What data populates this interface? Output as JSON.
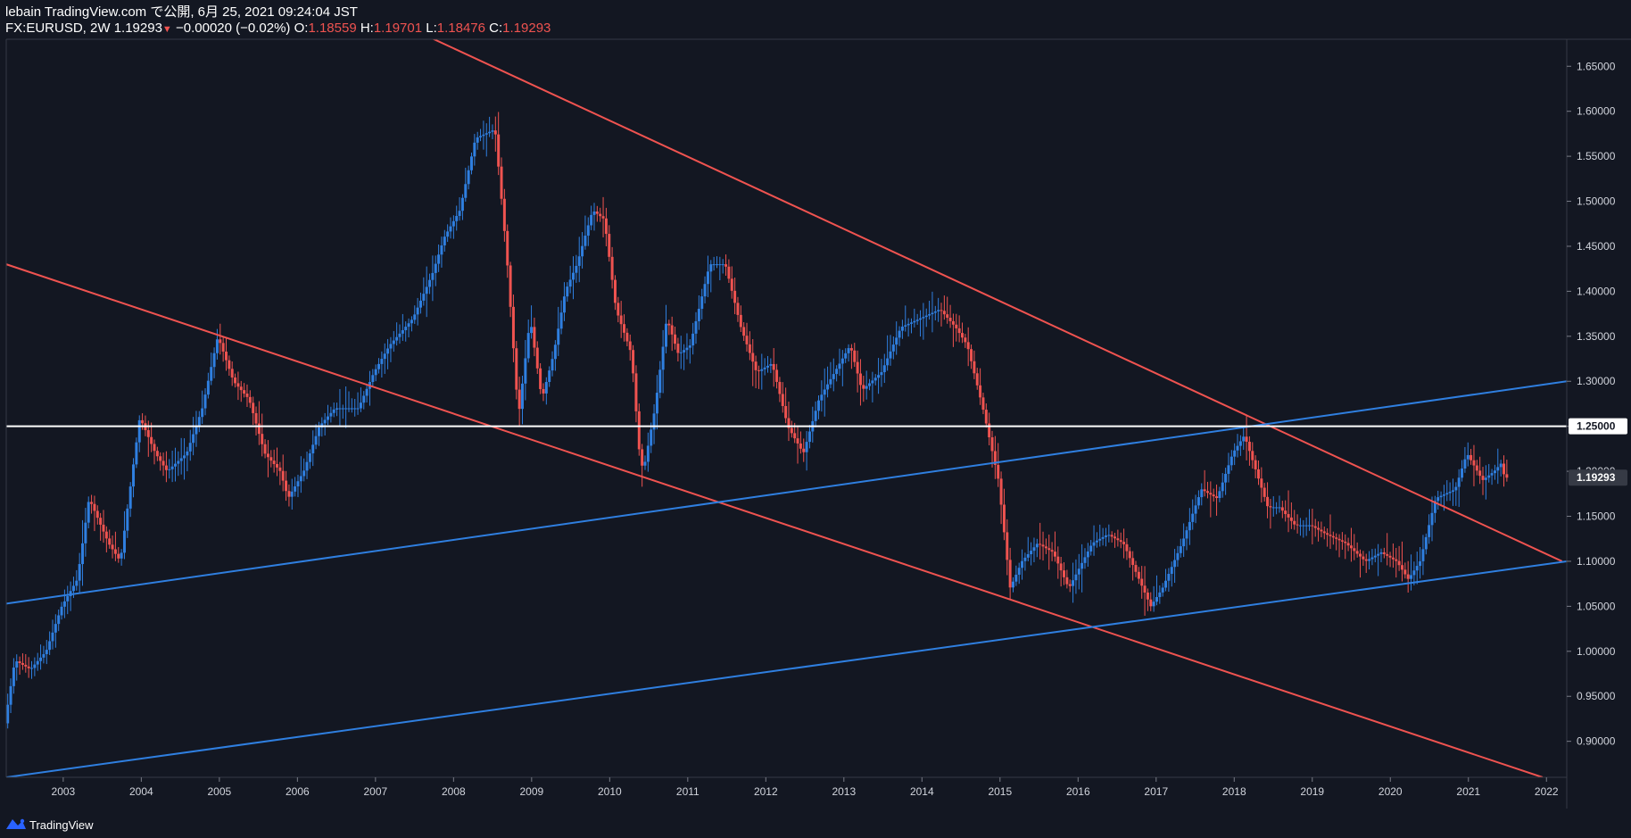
{
  "header": {
    "title_line": "lebain TradingView.com で公開, 6月 25, 2021 09:24:04 JST",
    "symbol": "FX:EURUSD, 2W",
    "last": "1.19293",
    "change": "−0.00020 (−0.02%)",
    "o_label": "O:",
    "o_value": "1.18559",
    "h_label": "H:",
    "h_value": "1.19701",
    "l_label": "L:",
    "l_value": "1.18476",
    "c_label": "C:",
    "c_value": "1.19293"
  },
  "footer": {
    "brand": "TradingView"
  },
  "colors": {
    "background": "#131722",
    "up": "#2f7fe0",
    "down": "#ef5350",
    "channel_red": "#ef5350",
    "channel_blue": "#2f7fe0",
    "horizontal_level": "#ffffff"
  },
  "chart_data": {
    "type": "candlestick",
    "instrument": "FX:EURUSD",
    "interval": "2W",
    "x_axis": {
      "range": [
        2002.27,
        2022.26
      ],
      "ticks": [
        "2003",
        "2004",
        "2005",
        "2006",
        "2007",
        "2008",
        "2009",
        "2010",
        "2011",
        "2012",
        "2013",
        "2014",
        "2015",
        "2016",
        "2017",
        "2018",
        "2019",
        "2020",
        "2021",
        "2022"
      ]
    },
    "y_axis": {
      "range": [
        0.86,
        1.68
      ],
      "position": "right",
      "ticks": [
        "0.90000",
        "0.95000",
        "1.00000",
        "1.05000",
        "1.10000",
        "1.15000",
        "1.20000",
        "1.25000",
        "1.30000",
        "1.35000",
        "1.40000",
        "1.45000",
        "1.50000",
        "1.55000",
        "1.60000",
        "1.65000"
      ]
    },
    "price_path": [
      [
        2002.27,
        0.92
      ],
      [
        2002.4,
        0.99
      ],
      [
        2002.6,
        0.98
      ],
      [
        2002.8,
        1.0
      ],
      [
        2003.0,
        1.05
      ],
      [
        2003.2,
        1.08
      ],
      [
        2003.35,
        1.17
      ],
      [
        2003.6,
        1.12
      ],
      [
        2003.75,
        1.1
      ],
      [
        2004.0,
        1.26
      ],
      [
        2004.2,
        1.22
      ],
      [
        2004.35,
        1.2
      ],
      [
        2004.6,
        1.22
      ],
      [
        2004.8,
        1.27
      ],
      [
        2005.0,
        1.35
      ],
      [
        2005.2,
        1.3
      ],
      [
        2005.4,
        1.28
      ],
      [
        2005.6,
        1.22
      ],
      [
        2005.8,
        1.2
      ],
      [
        2005.9,
        1.17
      ],
      [
        2006.1,
        1.2
      ],
      [
        2006.3,
        1.25
      ],
      [
        2006.5,
        1.27
      ],
      [
        2006.8,
        1.27
      ],
      [
        2007.0,
        1.31
      ],
      [
        2007.2,
        1.34
      ],
      [
        2007.5,
        1.37
      ],
      [
        2007.75,
        1.42
      ],
      [
        2007.9,
        1.46
      ],
      [
        2008.1,
        1.49
      ],
      [
        2008.3,
        1.57
      ],
      [
        2008.55,
        1.58
      ],
      [
        2008.7,
        1.44
      ],
      [
        2008.85,
        1.26
      ],
      [
        2009.0,
        1.37
      ],
      [
        2009.15,
        1.28
      ],
      [
        2009.3,
        1.33
      ],
      [
        2009.45,
        1.4
      ],
      [
        2009.6,
        1.43
      ],
      [
        2009.8,
        1.49
      ],
      [
        2009.95,
        1.48
      ],
      [
        2010.1,
        1.38
      ],
      [
        2010.3,
        1.33
      ],
      [
        2010.4,
        1.22
      ],
      [
        2010.45,
        1.2
      ],
      [
        2010.6,
        1.27
      ],
      [
        2010.75,
        1.37
      ],
      [
        2010.9,
        1.33
      ],
      [
        2011.05,
        1.34
      ],
      [
        2011.3,
        1.43
      ],
      [
        2011.5,
        1.43
      ],
      [
        2011.7,
        1.36
      ],
      [
        2011.9,
        1.31
      ],
      [
        2012.1,
        1.32
      ],
      [
        2012.3,
        1.25
      ],
      [
        2012.5,
        1.22
      ],
      [
        2012.7,
        1.28
      ],
      [
        2012.9,
        1.31
      ],
      [
        2013.1,
        1.34
      ],
      [
        2013.25,
        1.29
      ],
      [
        2013.5,
        1.31
      ],
      [
        2013.75,
        1.36
      ],
      [
        2014.0,
        1.37
      ],
      [
        2014.25,
        1.38
      ],
      [
        2014.45,
        1.36
      ],
      [
        2014.6,
        1.34
      ],
      [
        2014.8,
        1.27
      ],
      [
        2015.0,
        1.19
      ],
      [
        2015.15,
        1.07
      ],
      [
        2015.3,
        1.1
      ],
      [
        2015.5,
        1.12
      ],
      [
        2015.7,
        1.11
      ],
      [
        2015.9,
        1.07
      ],
      [
        2016.2,
        1.12
      ],
      [
        2016.4,
        1.13
      ],
      [
        2016.6,
        1.12
      ],
      [
        2016.8,
        1.08
      ],
      [
        2016.95,
        1.05
      ],
      [
        2017.1,
        1.07
      ],
      [
        2017.35,
        1.12
      ],
      [
        2017.6,
        1.18
      ],
      [
        2017.8,
        1.17
      ],
      [
        2018.0,
        1.22
      ],
      [
        2018.15,
        1.24
      ],
      [
        2018.3,
        1.2
      ],
      [
        2018.45,
        1.16
      ],
      [
        2018.6,
        1.16
      ],
      [
        2018.8,
        1.14
      ],
      [
        2019.0,
        1.14
      ],
      [
        2019.2,
        1.13
      ],
      [
        2019.45,
        1.12
      ],
      [
        2019.7,
        1.1
      ],
      [
        2019.9,
        1.11
      ],
      [
        2020.1,
        1.1
      ],
      [
        2020.25,
        1.08
      ],
      [
        2020.4,
        1.1
      ],
      [
        2020.6,
        1.17
      ],
      [
        2020.85,
        1.18
      ],
      [
        2021.0,
        1.22
      ],
      [
        2021.2,
        1.19
      ],
      [
        2021.35,
        1.2
      ],
      [
        2021.45,
        1.21
      ],
      [
        2021.48,
        1.19293
      ]
    ],
    "trendlines": [
      {
        "color": "red",
        "from": [
          2007.5,
          1.69
        ],
        "to": [
          2022.2,
          1.1
        ]
      },
      {
        "color": "red",
        "from": [
          2002.27,
          1.43
        ],
        "to": [
          2021.95,
          0.86
        ]
      },
      {
        "color": "blue",
        "from": [
          2002.27,
          1.053
        ],
        "to": [
          2022.26,
          1.3
        ]
      },
      {
        "color": "blue",
        "from": [
          2002.27,
          0.86
        ],
        "to": [
          2022.26,
          1.1
        ]
      }
    ],
    "horizontal_line": {
      "value": 1.25,
      "label": "1.25000"
    },
    "last_price": {
      "value": 1.19293,
      "label": "1.19293"
    }
  }
}
